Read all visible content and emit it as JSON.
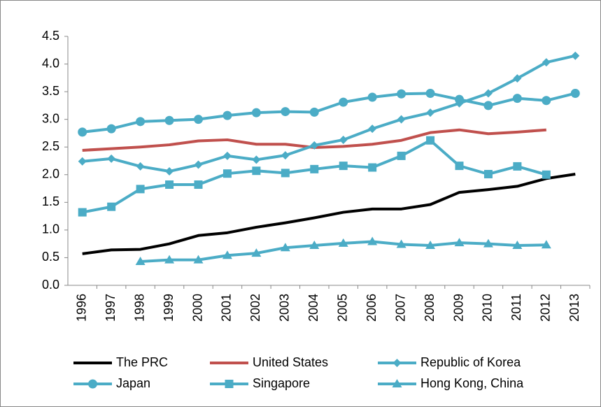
{
  "chart_data": {
    "type": "line",
    "categories": [
      "1996",
      "1997",
      "1998",
      "1999",
      "2000",
      "2001",
      "2002",
      "2003",
      "2004",
      "2005",
      "2006",
      "2007",
      "2008",
      "2009",
      "2010",
      "2011",
      "2012",
      "2013"
    ],
    "ylim": [
      0,
      4.5
    ],
    "yticks": [
      {
        "value": 0,
        "label": "0.0"
      },
      0.5,
      {
        "value": 1,
        "label": "1.0"
      },
      1.5,
      {
        "value": 2,
        "label": "2.0"
      },
      2.5,
      {
        "value": 3,
        "label": "3.0"
      },
      3.5,
      {
        "value": 4,
        "label": "4.0"
      },
      4.5
    ],
    "grid": false,
    "legend": "bottom",
    "series": [
      {
        "name": "The PRC",
        "color": "#000000",
        "marker": "none",
        "values": [
          0.57,
          0.64,
          0.65,
          0.75,
          0.9,
          0.95,
          1.05,
          1.13,
          1.22,
          1.32,
          1.38,
          1.38,
          1.46,
          1.68,
          1.73,
          1.79,
          1.93,
          2.01
        ]
      },
      {
        "name": "United States",
        "color": "#c0504d",
        "marker": "none",
        "values": [
          2.44,
          2.47,
          2.5,
          2.54,
          2.61,
          2.63,
          2.55,
          2.55,
          2.49,
          2.51,
          2.55,
          2.62,
          2.76,
          2.81,
          2.74,
          2.77,
          2.81,
          null
        ]
      },
      {
        "name": "Republic of Korea",
        "color": "#4bacc6",
        "marker": "diamond",
        "values": [
          2.24,
          2.29,
          2.15,
          2.06,
          2.18,
          2.34,
          2.27,
          2.35,
          2.53,
          2.63,
          2.83,
          3.0,
          3.12,
          3.29,
          3.47,
          3.74,
          4.03,
          4.15
        ]
      },
      {
        "name": "Japan",
        "color": "#4bacc6",
        "marker": "circle",
        "values": [
          2.77,
          2.83,
          2.96,
          2.98,
          3.0,
          3.07,
          3.12,
          3.14,
          3.13,
          3.31,
          3.4,
          3.46,
          3.47,
          3.36,
          3.25,
          3.38,
          3.34,
          3.47
        ]
      },
      {
        "name": "Singapore",
        "color": "#4bacc6",
        "marker": "square",
        "values": [
          1.32,
          1.42,
          1.74,
          1.82,
          1.82,
          2.02,
          2.07,
          2.03,
          2.1,
          2.16,
          2.13,
          2.34,
          2.62,
          2.16,
          2.01,
          2.15,
          2.0,
          null
        ]
      },
      {
        "name": "Hong Kong, China",
        "color": "#4bacc6",
        "marker": "triangle",
        "values": [
          null,
          null,
          0.43,
          0.46,
          0.46,
          0.54,
          0.58,
          0.68,
          0.72,
          0.76,
          0.79,
          0.74,
          0.72,
          0.77,
          0.75,
          0.72,
          0.73,
          null
        ]
      }
    ]
  }
}
